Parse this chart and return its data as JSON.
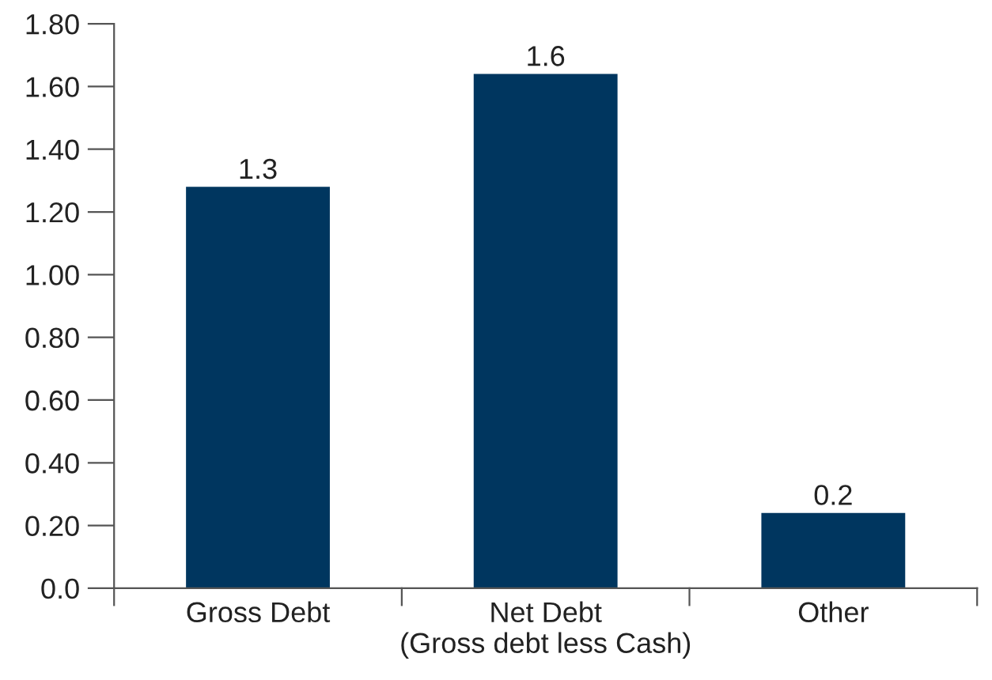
{
  "chart_data": {
    "type": "bar",
    "categories": [
      "Gross Debt",
      "Net Debt\n(Gross debt less Cash)",
      "Other"
    ],
    "values": [
      1.28,
      1.64,
      0.24
    ],
    "value_labels": [
      "1.3",
      "1.6",
      "0.2"
    ],
    "color": "#00365f",
    "ylim": [
      0,
      1.8
    ],
    "yticks": [
      {
        "value": 0,
        "label": "0.0"
      },
      {
        "value": 0.2,
        "label": "0.20"
      },
      {
        "value": 0.4,
        "label": "0.40"
      },
      {
        "value": 0.6,
        "label": "0.60"
      },
      {
        "value": 0.8,
        "label": "0.80"
      },
      {
        "value": 1.0,
        "label": "1.00"
      },
      {
        "value": 1.2,
        "label": "1.20"
      },
      {
        "value": 1.4,
        "label": "1.40"
      },
      {
        "value": 1.6,
        "label": "1.60"
      },
      {
        "value": 1.8,
        "label": "1.80"
      }
    ],
    "grid": false,
    "legend": false
  }
}
